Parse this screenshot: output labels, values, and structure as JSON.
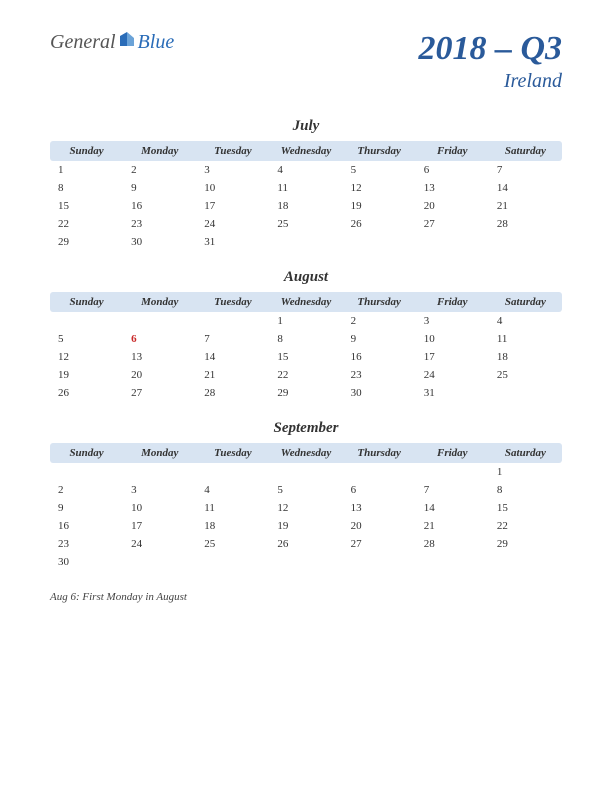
{
  "logo": {
    "text1": "General",
    "text2": "Blue"
  },
  "title": "2018 – Q3",
  "country": "Ireland",
  "weekdays": [
    "Sunday",
    "Monday",
    "Tuesday",
    "Wednesday",
    "Thursday",
    "Friday",
    "Saturday"
  ],
  "months": [
    {
      "name": "July",
      "weeks": [
        [
          "1",
          "2",
          "3",
          "4",
          "5",
          "6",
          "7"
        ],
        [
          "8",
          "9",
          "10",
          "11",
          "12",
          "13",
          "14"
        ],
        [
          "15",
          "16",
          "17",
          "18",
          "19",
          "20",
          "21"
        ],
        [
          "22",
          "23",
          "24",
          "25",
          "26",
          "27",
          "28"
        ],
        [
          "29",
          "30",
          "31",
          "",
          "",
          "",
          ""
        ]
      ],
      "holidays": []
    },
    {
      "name": "August",
      "weeks": [
        [
          "",
          "",
          "",
          "1",
          "2",
          "3",
          "4"
        ],
        [
          "5",
          "6",
          "7",
          "8",
          "9",
          "10",
          "11"
        ],
        [
          "12",
          "13",
          "14",
          "15",
          "16",
          "17",
          "18"
        ],
        [
          "19",
          "20",
          "21",
          "22",
          "23",
          "24",
          "25"
        ],
        [
          "26",
          "27",
          "28",
          "29",
          "30",
          "31",
          ""
        ]
      ],
      "holidays": [
        "6"
      ]
    },
    {
      "name": "September",
      "weeks": [
        [
          "",
          "",
          "",
          "",
          "",
          "",
          "1"
        ],
        [
          "2",
          "3",
          "4",
          "5",
          "6",
          "7",
          "8"
        ],
        [
          "9",
          "10",
          "11",
          "12",
          "13",
          "14",
          "15"
        ],
        [
          "16",
          "17",
          "18",
          "19",
          "20",
          "21",
          "22"
        ],
        [
          "23",
          "24",
          "25",
          "26",
          "27",
          "28",
          "29"
        ],
        [
          "30",
          "",
          "",
          "",
          "",
          "",
          ""
        ]
      ],
      "holidays": []
    }
  ],
  "footnote": "Aug 6: First Monday in August",
  "colors": {
    "header_bg": "#d8e4f2",
    "title_color": "#2a5a9a",
    "holiday_color": "#c92a2a",
    "text_color": "#333333",
    "logo_gray": "#555555",
    "logo_blue": "#2a6cb8"
  }
}
